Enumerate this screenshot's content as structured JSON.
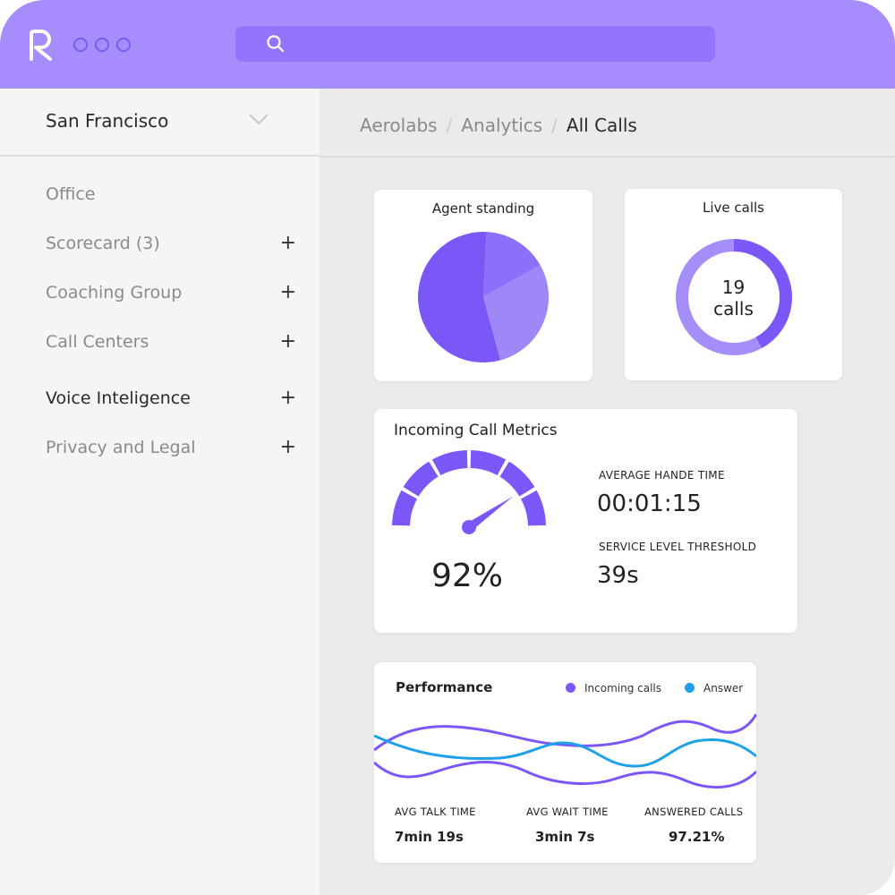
{
  "header": {
    "logo": "R",
    "search": {
      "placeholder": "",
      "icon": "search-icon"
    }
  },
  "sidebar": {
    "location": "San Francisco",
    "items": [
      {
        "label": "Office",
        "expandable": false,
        "active": false
      },
      {
        "label": "Scorecard (3)",
        "expandable": true,
        "active": false
      },
      {
        "label": "Coaching Group",
        "expandable": true,
        "active": false
      },
      {
        "label": "Call Centers",
        "expandable": true,
        "active": false
      },
      {
        "label": "Voice Inteligence",
        "expandable": true,
        "active": true
      },
      {
        "label": "Privacy and Legal",
        "expandable": true,
        "active": false
      }
    ],
    "plus": "+"
  },
  "breadcrumb": [
    "Aerolabs",
    "Analytics",
    "All Calls"
  ],
  "breadcrumb_sep": "/",
  "agent_standing": {
    "title": "Agent standing",
    "slices": [
      55,
      16,
      29
    ],
    "colors": [
      "#7b57f8",
      "#8c6ffa",
      "#9e88f7"
    ]
  },
  "live_calls": {
    "title": "Live calls",
    "count": "19",
    "unit": "calls",
    "fraction": 0.42,
    "colors": [
      "#7b57f8",
      "#a58efa"
    ]
  },
  "metrics": {
    "title": "Incoming Call Metrics",
    "gauge_value": "92%",
    "gauge_fraction": 0.92,
    "aht_label": "AVERAGE HANDE TIME",
    "aht_value": "00:01:15",
    "slt_label": "SERVICE LEVEL THRESHOLD",
    "slt_value": "39s"
  },
  "performance": {
    "title": "Performance",
    "legend": [
      {
        "name": "Incoming calls",
        "color": "#7b57f8"
      },
      {
        "name": "Answer",
        "color": "#1ea1e8"
      }
    ],
    "stats": [
      {
        "label": "AVG TALK TIME",
        "value": "7min 19s"
      },
      {
        "label": "AVG WAIT TIME",
        "value": "3min 7s"
      },
      {
        "label": "ANSWERED CALLS",
        "value": "97.21%"
      }
    ]
  },
  "colors": {
    "accent": "#7b57f8",
    "header": "#a68cfd",
    "search": "#9474fc"
  }
}
